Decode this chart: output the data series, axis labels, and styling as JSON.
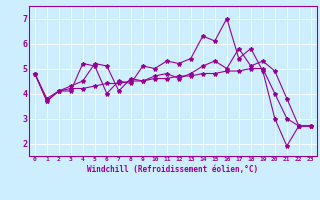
{
  "xlabel": "Windchill (Refroidissement éolien,°C)",
  "bg_color": "#cceeff",
  "line_color": "#990099",
  "xlim": [
    -0.5,
    23.5
  ],
  "ylim": [
    1.5,
    7.5
  ],
  "x_ticks": [
    0,
    1,
    2,
    3,
    4,
    5,
    6,
    7,
    8,
    9,
    10,
    11,
    12,
    13,
    14,
    15,
    16,
    17,
    18,
    19,
    20,
    21,
    22,
    23
  ],
  "y_ticks": [
    2,
    3,
    4,
    5,
    6,
    7
  ],
  "curve1_x": [
    0,
    1,
    2,
    3,
    4,
    5,
    6,
    7,
    8,
    9,
    10,
    11,
    12,
    13,
    14,
    15,
    16,
    17,
    18,
    19,
    20,
    21,
    22,
    23
  ],
  "curve1_y": [
    4.8,
    3.7,
    4.1,
    4.1,
    5.2,
    5.1,
    4.0,
    4.5,
    4.4,
    5.1,
    5.0,
    5.3,
    5.2,
    5.4,
    6.3,
    6.1,
    7.0,
    5.4,
    5.8,
    4.9,
    3.0,
    1.9,
    2.7,
    2.7
  ],
  "curve2_x": [
    0,
    1,
    2,
    3,
    4,
    5,
    6,
    7,
    8,
    9,
    10,
    11,
    12,
    13,
    14,
    15,
    16,
    17,
    18,
    19,
    20,
    21,
    22,
    23
  ],
  "curve2_y": [
    4.8,
    3.7,
    4.1,
    4.2,
    4.2,
    4.3,
    4.4,
    4.4,
    4.5,
    4.5,
    4.6,
    4.6,
    4.7,
    4.7,
    4.8,
    4.8,
    4.9,
    4.9,
    5.0,
    5.0,
    4.0,
    3.0,
    2.7,
    2.7
  ],
  "curve3_x": [
    0,
    1,
    2,
    3,
    4,
    5,
    6,
    7,
    8,
    9,
    10,
    11,
    12,
    13,
    14,
    15,
    16,
    17,
    18,
    19,
    20,
    21,
    22,
    23
  ],
  "curve3_y": [
    4.8,
    3.8,
    4.1,
    4.3,
    4.5,
    5.2,
    5.1,
    4.1,
    4.6,
    4.5,
    4.7,
    4.8,
    4.6,
    4.8,
    5.1,
    5.3,
    5.0,
    5.8,
    5.1,
    5.3,
    4.9,
    3.8,
    2.7,
    2.7
  ]
}
